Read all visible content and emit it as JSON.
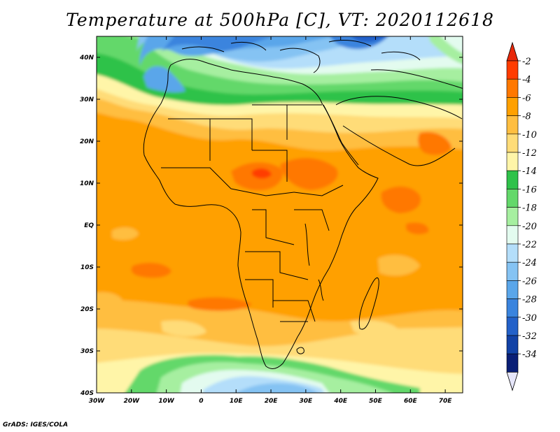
{
  "title": "Temperature at 500hPa [C], VT: 2020112618",
  "credit": "GrADS: IGES/COLA",
  "map": {
    "lon_range": [
      -30,
      75
    ],
    "lat_range": [
      -40,
      45
    ],
    "lon_ticks": [
      {
        "value": -30,
        "label": "30W"
      },
      {
        "value": -20,
        "label": "20W"
      },
      {
        "value": -10,
        "label": "10W"
      },
      {
        "value": 0,
        "label": "0"
      },
      {
        "value": 10,
        "label": "10E"
      },
      {
        "value": 20,
        "label": "20E"
      },
      {
        "value": 30,
        "label": "30E"
      },
      {
        "value": 40,
        "label": "40E"
      },
      {
        "value": 50,
        "label": "50E"
      },
      {
        "value": 60,
        "label": "60E"
      },
      {
        "value": 70,
        "label": "70E"
      }
    ],
    "lat_ticks": [
      {
        "value": 40,
        "label": "40N"
      },
      {
        "value": 30,
        "label": "30N"
      },
      {
        "value": 20,
        "label": "20N"
      },
      {
        "value": 10,
        "label": "10N"
      },
      {
        "value": 0,
        "label": "EQ"
      },
      {
        "value": -10,
        "label": "10S"
      },
      {
        "value": -20,
        "label": "20S"
      },
      {
        "value": -30,
        "label": "30S"
      },
      {
        "value": -40,
        "label": "40S"
      }
    ]
  },
  "colorbar": {
    "levels": [
      "-2",
      "-4",
      "-6",
      "-8",
      "-10",
      "-12",
      "-14",
      "-16",
      "-18",
      "-20",
      "-22",
      "-24",
      "-26",
      "-28",
      "-30",
      "-32",
      "-34"
    ],
    "colors": [
      "#ff3c00",
      "#ff7800",
      "#ffa000",
      "#ffbe40",
      "#ffdc78",
      "#fff5a8",
      "#2fc24a",
      "#63d86a",
      "#a6efa0",
      "#e3fbef",
      "#b4defa",
      "#85c3f3",
      "#5aa6ea",
      "#3a84de",
      "#2361c9",
      "#1242a6",
      "#0a1f76"
    ],
    "top_arrow_color": "#e8280a",
    "bottom_arrow_color": "#e6e6fa"
  }
}
